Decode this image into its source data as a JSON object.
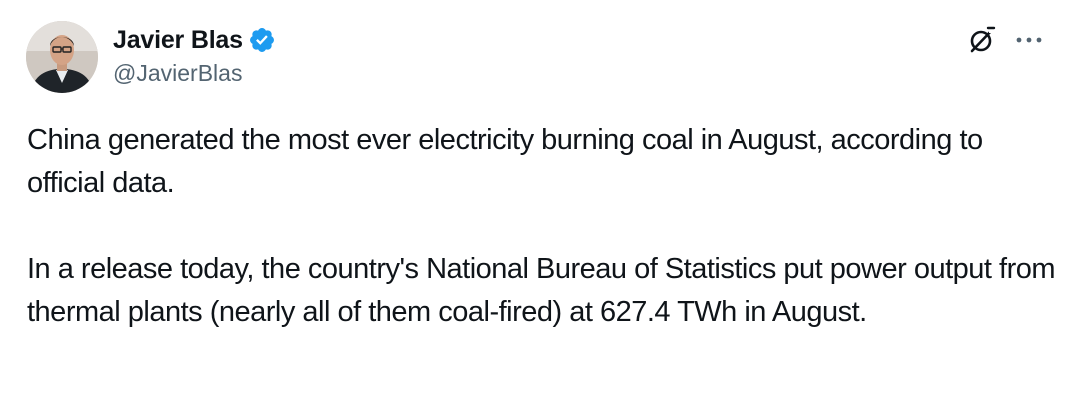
{
  "author": {
    "display_name": "Javier Blas",
    "handle": "@JavierBlas",
    "verified": true,
    "verified_color": "#1d9bf0"
  },
  "header_icons": {
    "grok": "grok-icon",
    "more": "more-options-icon"
  },
  "tweet": {
    "paragraphs": [
      "China generated the most ever electricity burning coal in August, according to official data.",
      "In a release today, the country's National Bureau of Statistics put power output from thermal plants (nearly all of them coal-fired) at 627.4 TWh in August."
    ]
  }
}
